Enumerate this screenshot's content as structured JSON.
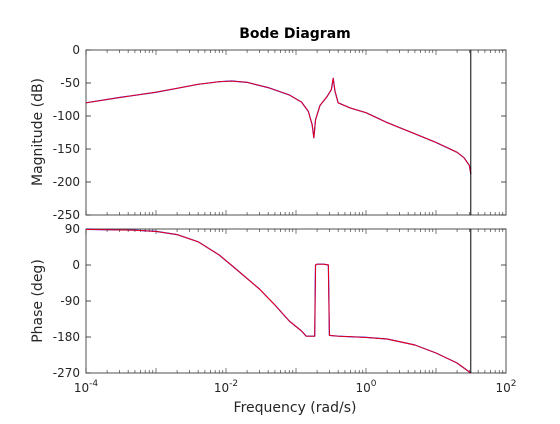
{
  "chart_data": {
    "type": "line",
    "title": "Bode Diagram",
    "xlabel": "Frequency  (rad/s)",
    "x_scale": "log",
    "xlim": [
      0.0001,
      100
    ],
    "x_ticks": [
      {
        "value": 0.0001,
        "base": "10",
        "exp": "-4"
      },
      {
        "value": 0.01,
        "base": "10",
        "exp": "-2"
      },
      {
        "value": 1,
        "base": "10",
        "exp": "0"
      },
      {
        "value": 100,
        "base": "10",
        "exp": "2"
      }
    ],
    "nyquist_frequency": 31.4,
    "colors": {
      "series_a": "#0000ff",
      "series_b": "#ff0000",
      "axis": "#262626",
      "nyquist_line": "#000000"
    },
    "panels": [
      {
        "name": "magnitude",
        "ylabel": "Magnitude (dB)",
        "ylim": [
          -250,
          0
        ],
        "y_ticks": [
          "0",
          "-50",
          "-100",
          "-150",
          "-200",
          "-250"
        ],
        "y_tick_values": [
          0,
          -50,
          -100,
          -150,
          -200,
          -250
        ],
        "series": [
          {
            "points": [
              [
                0.0001,
                -80
              ],
              [
                0.0003,
                -72
              ],
              [
                0.001,
                -64
              ],
              [
                0.002,
                -58
              ],
              [
                0.004,
                -52
              ],
              [
                0.008,
                -48
              ],
              [
                0.012,
                -47
              ],
              [
                0.02,
                -49
              ],
              [
                0.04,
                -57
              ],
              [
                0.08,
                -68
              ],
              [
                0.12,
                -79
              ],
              [
                0.15,
                -93
              ],
              [
                0.17,
                -113
              ],
              [
                0.18,
                -133
              ],
              [
                0.19,
                -106
              ],
              [
                0.22,
                -84
              ],
              [
                0.28,
                -70
              ],
              [
                0.32,
                -60
              ],
              [
                0.34,
                -43
              ],
              [
                0.36,
                -62
              ],
              [
                0.4,
                -80
              ],
              [
                0.6,
                -88
              ],
              [
                1,
                -95
              ],
              [
                2,
                -110
              ],
              [
                5,
                -127
              ],
              [
                10,
                -140
              ],
              [
                20,
                -155
              ],
              [
                25,
                -163
              ],
              [
                30,
                -175
              ],
              [
                31.4,
                -188
              ]
            ]
          },
          {
            "points": [
              [
                0.0001,
                -80
              ],
              [
                0.0003,
                -72
              ],
              [
                0.001,
                -64
              ],
              [
                0.002,
                -58
              ],
              [
                0.004,
                -52
              ],
              [
                0.008,
                -48
              ],
              [
                0.012,
                -47
              ],
              [
                0.02,
                -49
              ],
              [
                0.04,
                -57
              ],
              [
                0.08,
                -68
              ],
              [
                0.12,
                -79
              ],
              [
                0.15,
                -93
              ],
              [
                0.17,
                -113
              ],
              [
                0.18,
                -133
              ],
              [
                0.19,
                -106
              ],
              [
                0.22,
                -84
              ],
              [
                0.28,
                -70
              ],
              [
                0.32,
                -60
              ],
              [
                0.34,
                -43
              ],
              [
                0.36,
                -62
              ],
              [
                0.4,
                -80
              ],
              [
                0.6,
                -88
              ],
              [
                1,
                -95
              ],
              [
                2,
                -110
              ],
              [
                5,
                -127
              ],
              [
                10,
                -140
              ],
              [
                20,
                -155
              ],
              [
                25,
                -163
              ],
              [
                30,
                -175
              ],
              [
                31.4,
                -188
              ]
            ]
          }
        ]
      },
      {
        "name": "phase",
        "ylabel": "Phase (deg)",
        "ylim": [
          -270,
          90
        ],
        "y_ticks": [
          "90",
          "0",
          "-90",
          "-180",
          "-270"
        ],
        "y_tick_values": [
          90,
          0,
          -90,
          -180,
          -270
        ],
        "series": [
          {
            "points": [
              [
                0.0001,
                89
              ],
              [
                0.0005,
                87
              ],
              [
                0.001,
                84
              ],
              [
                0.002,
                76
              ],
              [
                0.004,
                58
              ],
              [
                0.008,
                25
              ],
              [
                0.015,
                -15
              ],
              [
                0.03,
                -60
              ],
              [
                0.05,
                -100
              ],
              [
                0.08,
                -140
              ],
              [
                0.12,
                -165
              ],
              [
                0.14,
                -178
              ],
              [
                0.18,
                -178
              ],
              [
                0.185,
                -178
              ],
              [
                0.19,
                0
              ],
              [
                0.2,
                2
              ],
              [
                0.25,
                2
              ],
              [
                0.29,
                0
              ],
              [
                0.3,
                -176
              ],
              [
                0.4,
                -178
              ],
              [
                1,
                -181
              ],
              [
                2,
                -185
              ],
              [
                5,
                -200
              ],
              [
                10,
                -220
              ],
              [
                20,
                -245
              ],
              [
                31.4,
                -270
              ]
            ]
          },
          {
            "points": [
              [
                0.0001,
                89
              ],
              [
                0.0005,
                87
              ],
              [
                0.001,
                84
              ],
              [
                0.002,
                76
              ],
              [
                0.004,
                58
              ],
              [
                0.008,
                25
              ],
              [
                0.015,
                -15
              ],
              [
                0.03,
                -60
              ],
              [
                0.05,
                -100
              ],
              [
                0.08,
                -140
              ],
              [
                0.12,
                -165
              ],
              [
                0.14,
                -178
              ],
              [
                0.18,
                -178
              ],
              [
                0.185,
                -178
              ],
              [
                0.19,
                0
              ],
              [
                0.2,
                2
              ],
              [
                0.25,
                2
              ],
              [
                0.29,
                0
              ],
              [
                0.3,
                -176
              ],
              [
                0.4,
                -178
              ],
              [
                1,
                -181
              ],
              [
                2,
                -185
              ],
              [
                5,
                -200
              ],
              [
                10,
                -220
              ],
              [
                20,
                -245
              ],
              [
                31.4,
                -270
              ]
            ]
          }
        ]
      }
    ]
  }
}
